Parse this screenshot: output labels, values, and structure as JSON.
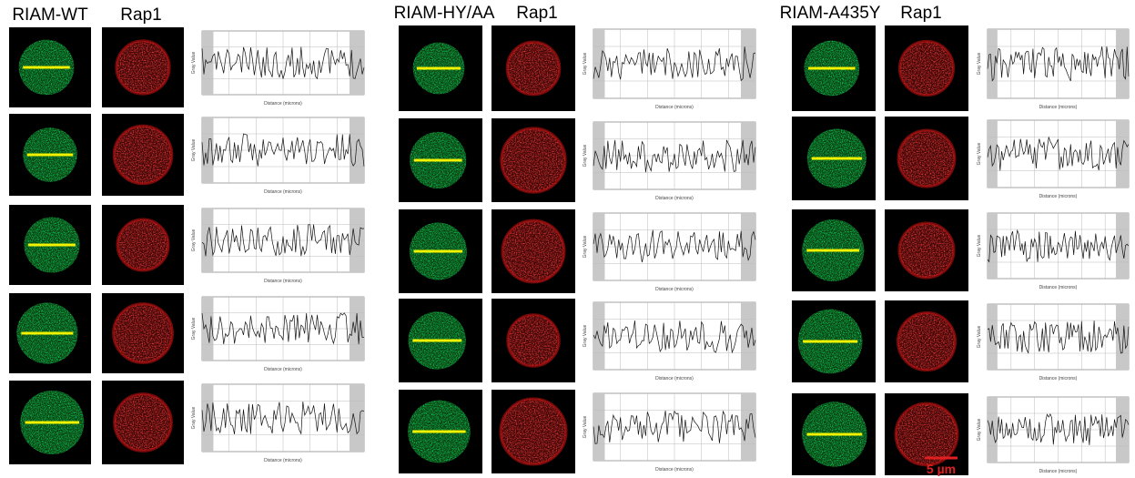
{
  "panels": [
    {
      "label": "RIAM-WT",
      "channel": "Rap1"
    },
    {
      "label": "RIAM-HY/AA",
      "channel": "Rap1"
    },
    {
      "label": "RIAM-A435Y",
      "channel": "Rap1"
    }
  ],
  "plot_labels": {
    "y": "Gray Value",
    "x": "Distance (microns)"
  },
  "scale_bar": "5 µm"
}
